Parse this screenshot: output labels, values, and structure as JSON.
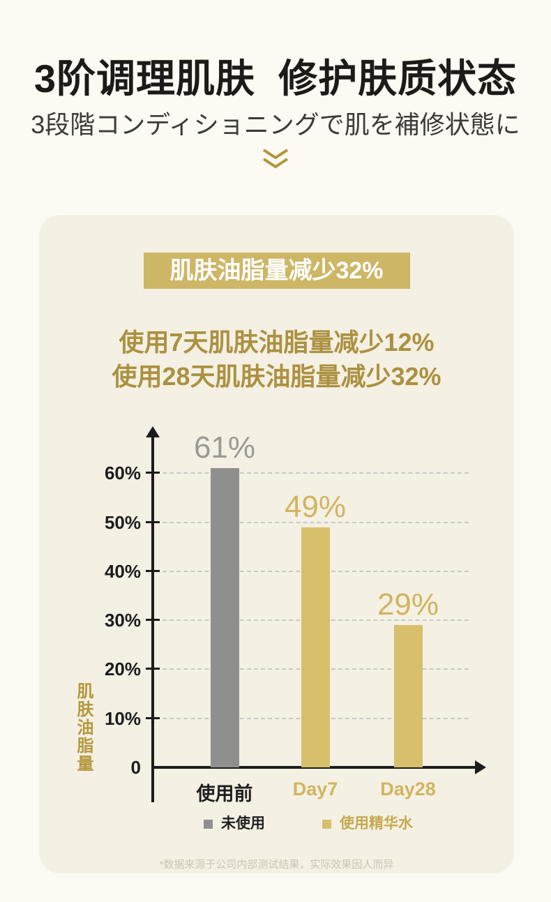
{
  "page": {
    "background": "#FCFAF2",
    "card_background": "#F4F0E3"
  },
  "header": {
    "title": "3阶调理肌肤  修护肤质状态",
    "subtitle": "3段階コンディショニングで肌を補修状態に",
    "scroll_icon": "double-chevron-down",
    "scroll_icon_color": "#B0963C"
  },
  "card": {
    "badge_label": "肌肤油脂量减少32%",
    "badge_color": "#CDB666",
    "highlight_line1": "使用7天肌肤油脂量减少12%",
    "highlight_line2": "使用28天肌肤油脂量减少32%",
    "highlight_color": "#AB9140",
    "footnote": "*数据来源于公司内部测试结果，实际效果因人而异"
  },
  "chart_data": {
    "type": "bar",
    "categories": [
      "使用前",
      "Day7",
      "Day28"
    ],
    "values": [
      61,
      49,
      29
    ],
    "value_labels": [
      "61%",
      "49%",
      "29%"
    ],
    "unit": "%",
    "ylabel": "肌肤油脂量",
    "xlabel": "",
    "ylim": [
      0,
      65
    ],
    "yticks": [
      0,
      10,
      20,
      30,
      40,
      50,
      60
    ],
    "ytick_labels": [
      "0",
      "10%",
      "20%",
      "30%",
      "40%",
      "50%",
      "60%"
    ],
    "grid": "horizontal-dashed",
    "legend_position": "bottom",
    "legend": [
      {
        "label": "未使用",
        "color": "#8F8F8D",
        "text_color": "#222222"
      },
      {
        "label": "使用精华水",
        "color": "#D8BF6C",
        "text_color": "#C5A94E"
      }
    ],
    "bar_colors": [
      "#8F8F8D",
      "#D8BF6C",
      "#D8BF6C"
    ],
    "value_label_colors": [
      "#9C9893",
      "#D2B45F",
      "#D2B45F"
    ],
    "category_colors": [
      "#1F1F1F",
      "#D2B45F",
      "#D2B45F"
    ]
  }
}
